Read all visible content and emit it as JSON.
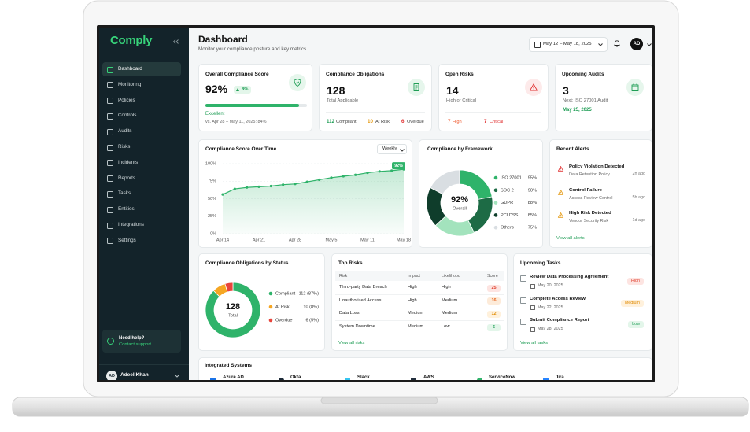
{
  "sidebar": {
    "logo": "Comply",
    "nav": [
      "Dashboard",
      "Monitoring",
      "Policies",
      "Controls",
      "Audits",
      "Risks",
      "Incidents",
      "Reports",
      "Tasks",
      "Entities",
      "Integrations",
      "Settings"
    ],
    "help": {
      "title": "Need help?",
      "link": "Contact support"
    },
    "user": {
      "initials": "AD",
      "name": "Adeel Khan"
    }
  },
  "header": {
    "title": "Dashboard",
    "subtitle": "Monitor your compliance posture and key metrics",
    "date_range": "May 12 – May 18, 2025",
    "avatar": "AD"
  },
  "kpis": [
    {
      "title": "Overall Compliance Score",
      "value": "92%",
      "delta": "8%",
      "progress": 92,
      "progress_range": [
        0,
        100
      ],
      "status": "Excellent",
      "comparison": "vs. Apr 28 – May 11, 2025: 84%"
    },
    {
      "title": "Compliance Obligations",
      "value": "128",
      "caption": "Total Applicable",
      "breakdown": [
        {
          "value": "112",
          "label": "Compliant"
        },
        {
          "value": "10",
          "label": "At Risk"
        },
        {
          "value": "6",
          "label": "Overdue"
        }
      ]
    },
    {
      "title": "Open Risks",
      "value": "14",
      "caption": "High or Critical",
      "breakdown": [
        {
          "value": "7",
          "label": "High"
        },
        {
          "value": "7",
          "label": "Critical"
        }
      ]
    },
    {
      "title": "Upcoming Audits",
      "value": "3",
      "caption": "Next: ISO 27001 Audit",
      "date": "May 25, 2025"
    }
  ],
  "score_chart": {
    "type": "line",
    "title": "Compliance Score Over Time",
    "period": "Weekly",
    "categories": [
      "Apr 14",
      null,
      null,
      "Apr 21",
      null,
      null,
      "Apr 28",
      null,
      null,
      "May 5",
      null,
      null,
      "May 11",
      null,
      null,
      "May 18"
    ],
    "values": [
      56,
      64,
      66,
      67,
      68,
      70,
      71,
      74,
      77,
      80,
      82,
      84,
      87,
      89,
      90,
      92
    ],
    "ylim": [
      0,
      100
    ],
    "yticks": [
      {
        "value": 0,
        "label": "0%"
      },
      {
        "value": 25,
        "label": "25%"
      },
      {
        "value": 50,
        "label": "50%"
      },
      {
        "value": 75,
        "label": "75%"
      },
      {
        "value": 100,
        "label": "100%"
      }
    ],
    "end_label": "92%",
    "color": "#2fb36a",
    "grid": true
  },
  "framework": {
    "type": "donut",
    "title": "Compliance by Framework",
    "center_value": "92%",
    "center_label": "Overall",
    "categories": [
      "ISO 27001",
      "SOC 2",
      "GDPR",
      "PCI DSS",
      "Others"
    ],
    "values": [
      95,
      90,
      88,
      85,
      75
    ],
    "value_labels": [
      "95%",
      "90%",
      "88%",
      "85%",
      "75%"
    ],
    "colors": [
      "#2fb36a",
      "#1d6b45",
      "#a3e3bd",
      "#0f3d2b",
      "#d9dee2"
    ]
  },
  "alerts": {
    "title": "Recent Alerts",
    "items": [
      {
        "title": "Policy Violation Detected",
        "detail": "Data Retention Policy",
        "time": "2h ago"
      },
      {
        "title": "Control Failure",
        "detail": "Access Review Control",
        "time": "5h ago"
      },
      {
        "title": "High Risk Detected",
        "detail": "Vendor Security Risk",
        "time": "1d ago"
      }
    ],
    "link": "View all alerts"
  },
  "obligations": {
    "type": "donut",
    "title": "Compliance Obligations by Status",
    "center_value": "128",
    "center_label": "Total",
    "categories": [
      "Compliant",
      "At Risk",
      "Overdue"
    ],
    "values": [
      112,
      10,
      6
    ],
    "value_labels": [
      "112 (87%)",
      "10 (8%)",
      "6 (5%)"
    ],
    "colors": [
      "#2fb36a",
      "#f5a623",
      "#e8453c"
    ]
  },
  "risks": {
    "title": "Top Risks",
    "columns": [
      "Risk",
      "Impact",
      "Likelihood",
      "Score"
    ],
    "rows": [
      [
        "Third-party Data Breach",
        "High",
        "High",
        "25"
      ],
      [
        "Unauthorized Access",
        "High",
        "Medium",
        "16"
      ],
      [
        "Data Loss",
        "Medium",
        "Medium",
        "12"
      ],
      [
        "System Downtime",
        "Medium",
        "Low",
        "6"
      ]
    ],
    "link": "View all risks"
  },
  "tasks": {
    "title": "Upcoming Tasks",
    "items": [
      {
        "title": "Review Data Processing Agreement",
        "date": "May 20, 2025",
        "priority": "High"
      },
      {
        "title": "Complete Access Review",
        "date": "May 22, 2025",
        "priority": "Medium"
      },
      {
        "title": "Submit Compliance Report",
        "date": "May 28, 2025",
        "priority": "Low"
      }
    ],
    "link": "View all tasks"
  },
  "integrations": {
    "title": "Integrated Systems",
    "items": [
      "Azure AD",
      "Okta",
      "Slack",
      "AWS",
      "ServiceNow",
      "Jira"
    ]
  }
}
